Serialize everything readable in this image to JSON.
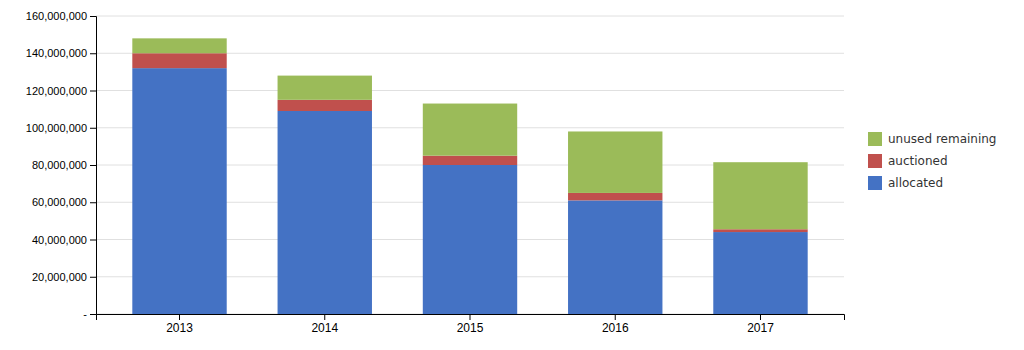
{
  "chart_data": {
    "type": "bar",
    "stacked": true,
    "categories": [
      "2013",
      "2014",
      "2015",
      "2016",
      "2017"
    ],
    "series": [
      {
        "name": "allocated",
        "color": "#4472C4",
        "values": [
          132000000,
          109000000,
          80000000,
          61000000,
          44000000
        ]
      },
      {
        "name": "auctioned",
        "color": "#C0504D",
        "values": [
          8000000,
          6000000,
          5000000,
          4000000,
          1500000
        ]
      },
      {
        "name": "unused remaining",
        "color": "#9BBB59",
        "values": [
          8000000,
          13000000,
          28000000,
          33000000,
          36000000
        ]
      }
    ],
    "ylim": [
      0,
      160000000
    ],
    "yticks": [
      {
        "value": 0,
        "label": "-"
      },
      {
        "value": 20000000,
        "label": "20,000,000"
      },
      {
        "value": 40000000,
        "label": "40,000,000"
      },
      {
        "value": 60000000,
        "label": "60,000,000"
      },
      {
        "value": 80000000,
        "label": "80,000,000"
      },
      {
        "value": 100000000,
        "label": "100,000,000"
      },
      {
        "value": 120000000,
        "label": "120,000,000"
      },
      {
        "value": 140000000,
        "label": "140,000,000"
      },
      {
        "value": 160000000,
        "label": "160,000,000"
      }
    ],
    "grid": true,
    "legend": "right"
  }
}
